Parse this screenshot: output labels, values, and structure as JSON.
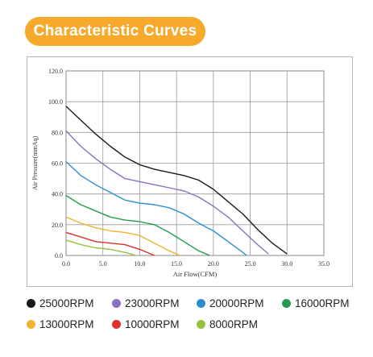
{
  "header": {
    "title": "Characteristic Curves"
  },
  "chart_data": {
    "type": "line",
    "xlabel": "Air Flow(CFM)",
    "ylabel": "Air Pressure(mmAq)",
    "xlim": [
      0,
      35
    ],
    "ylim": [
      0,
      120
    ],
    "xticks": [
      "0.0",
      "5.0",
      "10.0",
      "15.0",
      "20.0",
      "25.0",
      "30.0",
      "35.0"
    ],
    "yticks": [
      "0.0",
      "20.0",
      "40.0",
      "60.0",
      "80.0",
      "100.0",
      "120.0"
    ],
    "grid": true,
    "legend_placement": "bottom",
    "series": [
      {
        "name": "25000RPM",
        "color": "#1a1a1a",
        "points": [
          [
            0,
            97
          ],
          [
            2,
            88
          ],
          [
            4,
            79
          ],
          [
            6,
            71
          ],
          [
            8,
            64
          ],
          [
            10,
            59
          ],
          [
            12,
            56
          ],
          [
            14,
            54
          ],
          [
            16,
            52
          ],
          [
            18,
            49
          ],
          [
            20,
            43
          ],
          [
            22,
            35
          ],
          [
            24,
            27
          ],
          [
            26,
            17
          ],
          [
            28,
            8
          ],
          [
            30,
            1
          ]
        ]
      },
      {
        "name": "23000RPM",
        "color": "#8b6fc0",
        "points": [
          [
            0,
            81
          ],
          [
            2,
            71
          ],
          [
            4,
            63
          ],
          [
            6,
            56
          ],
          [
            8,
            50
          ],
          [
            10,
            48
          ],
          [
            12,
            46
          ],
          [
            14,
            44
          ],
          [
            16,
            42
          ],
          [
            18,
            38
          ],
          [
            20,
            32
          ],
          [
            22,
            25
          ],
          [
            24,
            16
          ],
          [
            26,
            7
          ],
          [
            27.5,
            1
          ]
        ]
      },
      {
        "name": "20000RPM",
        "color": "#2a8fd0",
        "points": [
          [
            0,
            61
          ],
          [
            2,
            52
          ],
          [
            4,
            46
          ],
          [
            6,
            41
          ],
          [
            8,
            36
          ],
          [
            10,
            34
          ],
          [
            12,
            33
          ],
          [
            14,
            31
          ],
          [
            16,
            27
          ],
          [
            18,
            21
          ],
          [
            20,
            16
          ],
          [
            22,
            9
          ],
          [
            24,
            2
          ],
          [
            24.5,
            0
          ]
        ]
      },
      {
        "name": "16000RPM",
        "color": "#239d4d",
        "points": [
          [
            0,
            39
          ],
          [
            2,
            33
          ],
          [
            4,
            29
          ],
          [
            6,
            25
          ],
          [
            8,
            23
          ],
          [
            10,
            22
          ],
          [
            12,
            20
          ],
          [
            14,
            15
          ],
          [
            16,
            9
          ],
          [
            18,
            3
          ],
          [
            19.5,
            0
          ]
        ]
      },
      {
        "name": "13000RPM",
        "color": "#f2b233",
        "points": [
          [
            0,
            25
          ],
          [
            2,
            21
          ],
          [
            4,
            18
          ],
          [
            6,
            16
          ],
          [
            8,
            15
          ],
          [
            10,
            13
          ],
          [
            12,
            8
          ],
          [
            14,
            3
          ],
          [
            15.5,
            0
          ]
        ]
      },
      {
        "name": "10000RPM",
        "color": "#e0302b",
        "points": [
          [
            0,
            15
          ],
          [
            2,
            12
          ],
          [
            4,
            9
          ],
          [
            6,
            8
          ],
          [
            8,
            7
          ],
          [
            10,
            4
          ],
          [
            11.5,
            1
          ],
          [
            12,
            0
          ]
        ]
      },
      {
        "name": "8000RPM",
        "color": "#94c23b",
        "points": [
          [
            0,
            10
          ],
          [
            2,
            7
          ],
          [
            4,
            5
          ],
          [
            6,
            4
          ],
          [
            8,
            2
          ],
          [
            9.5,
            0
          ]
        ]
      }
    ]
  },
  "legend": {
    "items": [
      {
        "label": "25000RPM",
        "color": "#1a1a1a"
      },
      {
        "label": "23000RPM",
        "color": "#8b6fc0"
      },
      {
        "label": "20000RPM",
        "color": "#2a8fd0"
      },
      {
        "label": "16000RPM",
        "color": "#239d4d"
      },
      {
        "label": "13000RPM",
        "color": "#f2b233"
      },
      {
        "label": "10000RPM",
        "color": "#e0302b"
      },
      {
        "label": "8000RPM",
        "color": "#94c23b"
      }
    ]
  }
}
